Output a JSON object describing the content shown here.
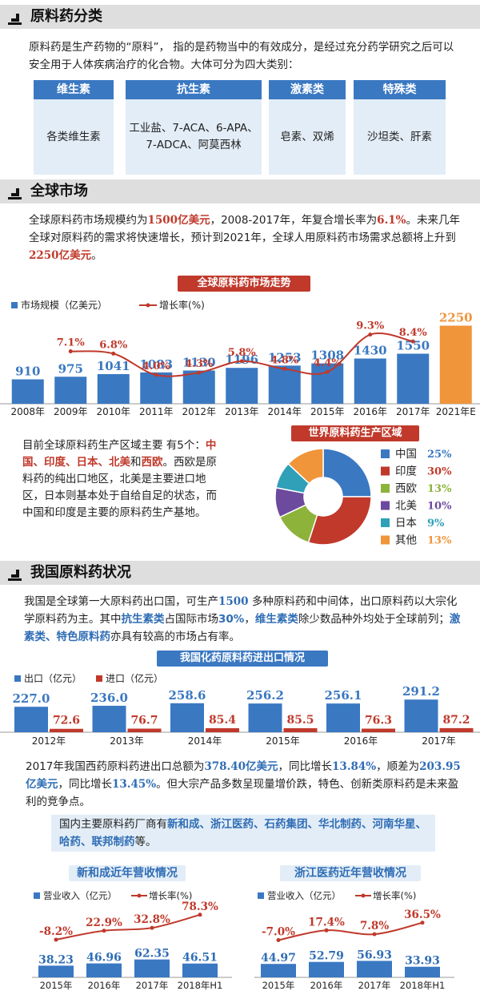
{
  "sections": {
    "s1": {
      "title": "原料药分类"
    },
    "s2": {
      "title": "全球市场"
    },
    "s3": {
      "title": "我国原料药状况"
    }
  },
  "classification": {
    "intro": "原料药是生产药物的“原料”，  指的是药物当中的有效成分，是经过充分药学研究之后可以安全用于人体疾病治疗的化合物。大体可分为四大类别：",
    "categories": [
      {
        "name": "维生素",
        "content": "各类维生素"
      },
      {
        "name": "抗生素",
        "content": "工业盐、7-ACA、6-APA、7-ADCA、阿莫西林"
      },
      {
        "name": "激素类",
        "content": "皂素、双烯"
      },
      {
        "name": "特殊类",
        "content": "沙坦类、肝素"
      }
    ]
  },
  "global": {
    "p1a": "全球原料药市场规模约为",
    "p1b": "1500亿美元",
    "p1c": "，2008-2017年，年复合增长率为",
    "p1d": "6.1%",
    "p1e": "。未来几年全球对原料药的需求将快速增长，预计到2021年，全球人用原料药市场需求总额将上升到",
    "p1f": "2250亿美元",
    "p1g": "。",
    "region_text": {
      "a": "目前全球原料药生产区域主要 有5个：",
      "b": "中国、印度、日本、北美",
      "c": "和",
      "d": "西欧",
      "e": "。西欧是原料药的纯出口地区，北美是主要进口地区，日本则基本处于自给自足的状态，而中国和印度是主要的原料药生产基地。"
    }
  },
  "china": {
    "p1a": "我国是全球第一大原料药出口国，可生产",
    "p1b": "1500",
    "p1c": " 多种原料药和中间体，出口原料药以大宗化学原料药为主。其中",
    "p1d": "抗生素类",
    "p1e": "占国际市场",
    "p1f": "30%",
    "p1g": "，",
    "p1h": "维生素类",
    "p1i": "除少数品种外均处于全球前列；",
    "p1j": "激素类、特色原料药",
    "p1k": "亦具有较高的市场占有率。",
    "p2a": "2017年我国西药原料药进出口总额为",
    "p2b": "378.40亿美元",
    "p2c": "，同比增长",
    "p2d": "13.84%",
    "p2e": "，顺差为",
    "p2f": "203.95亿美元",
    "p2g": "，同比增长",
    "p2h": "13.45%",
    "p2i": "。但大宗产品多数呈现量增价跌，特色、创新类原料药是未来盈利的竞争点。",
    "makers_a": "国内主要原料药厂商有",
    "makers_b": "新和成、浙江医药、石药集团、华北制药、河南华星、哈药、联邦制药",
    "makers_c": "等。"
  },
  "chart_data": [
    {
      "type": "bar",
      "title": "全球原料药市场走势",
      "categories": [
        "2008年",
        "2009年",
        "2010年",
        "2011年",
        "2012年",
        "2013年",
        "2014年",
        "2015年",
        "2016年",
        "2017年",
        "2021年E"
      ],
      "series": [
        {
          "name": "市场规模（亿美元）",
          "values": [
            910,
            975,
            1041,
            1083,
            1130,
            1196,
            1253,
            1308,
            1430,
            1550,
            2250
          ],
          "color": "#3a78c2",
          "highlight_color": "#f0953a"
        },
        {
          "name": "增长率(%)",
          "type": "line",
          "x": [
            "2009年",
            "2010年",
            "2011年",
            "2012年",
            "2013年",
            "2014年",
            "2015年",
            "2016年",
            "2017年"
          ],
          "values": [
            7.1,
            6.8,
            4.0,
            4.3,
            5.8,
            4.8,
            4.4,
            9.3,
            8.4
          ],
          "labels": [
            "7.1%",
            "6.8%",
            "4.0%",
            "4.3%",
            "5.8%",
            "4.8%",
            "4.4%",
            "9.3%",
            "8.4%"
          ],
          "color": "#c0392b"
        }
      ],
      "value_labels": [
        "910",
        "975",
        "1041",
        "1083",
        "1130",
        "1196",
        "1253",
        "1308",
        "1430",
        "1550",
        "2250"
      ],
      "legend": "top-left"
    },
    {
      "type": "pie",
      "title": "世界原料药生产区域",
      "labels": [
        "中国",
        "印度",
        "西欧",
        "北美",
        "日本",
        "其他"
      ],
      "values": [
        25,
        30,
        13,
        10,
        9,
        13
      ],
      "value_labels": [
        "25%",
        "30%",
        "13%",
        "10%",
        "9%",
        "13%"
      ],
      "colors": [
        "#3a78c2",
        "#c0392b",
        "#8db33a",
        "#6c4a9e",
        "#2fa0b8",
        "#f0953a"
      ],
      "legend": "right"
    },
    {
      "type": "bar",
      "title": "我国化药原料药进出口情况",
      "categories": [
        "2012年",
        "2013年",
        "2014年",
        "2015年",
        "2016年",
        "2017年"
      ],
      "series": [
        {
          "name": "出口（亿元）",
          "values": [
            227.0,
            236.0,
            258.6,
            256.2,
            256.1,
            291.2
          ],
          "labels": [
            "227.0",
            "236.0",
            "258.6",
            "256.2",
            "256.1",
            "291.2"
          ],
          "color": "#3a78c2"
        },
        {
          "name": "进口（亿元）",
          "values": [
            72.6,
            76.7,
            85.4,
            85.5,
            76.3,
            87.2
          ],
          "labels": [
            "72.6",
            "76.7",
            "85.4",
            "85.5",
            "76.3",
            "87.2"
          ],
          "color": "#c0392b"
        }
      ],
      "legend": "top-left"
    },
    {
      "type": "bar",
      "title": "新和成近年营收情况",
      "categories": [
        "2015年",
        "2016年",
        "2017年",
        "2018年H1"
      ],
      "series": [
        {
          "name": "营业收入（亿元）",
          "values": [
            38.23,
            46.96,
            62.35,
            46.51
          ],
          "labels": [
            "38.23",
            "46.96",
            "62.35",
            "46.51"
          ],
          "color": "#3a78c2"
        },
        {
          "name": "增长率(%)",
          "type": "line",
          "values": [
            -8.2,
            22.9,
            32.8,
            78.3
          ],
          "labels": [
            "-8.2%",
            "22.9%",
            "32.8%",
            "78.3%"
          ],
          "color": "#c0392b"
        }
      ],
      "legend": "top-left"
    },
    {
      "type": "bar",
      "title": "浙江医药近年营收情况",
      "categories": [
        "2015年",
        "2016年",
        "2017年",
        "2018年H1"
      ],
      "series": [
        {
          "name": "营业收入（亿元）",
          "values": [
            44.97,
            52.79,
            56.93,
            33.93
          ],
          "labels": [
            "44.97",
            "52.79",
            "56.93",
            "33.93"
          ],
          "color": "#3a78c2"
        },
        {
          "name": "增长率(%)",
          "type": "line",
          "values": [
            -7.0,
            17.4,
            7.8,
            36.5
          ],
          "labels": [
            "-7.0%",
            "17.4%",
            "7.8%",
            "36.5%"
          ],
          "color": "#c0392b"
        }
      ],
      "legend": "top-left"
    }
  ]
}
